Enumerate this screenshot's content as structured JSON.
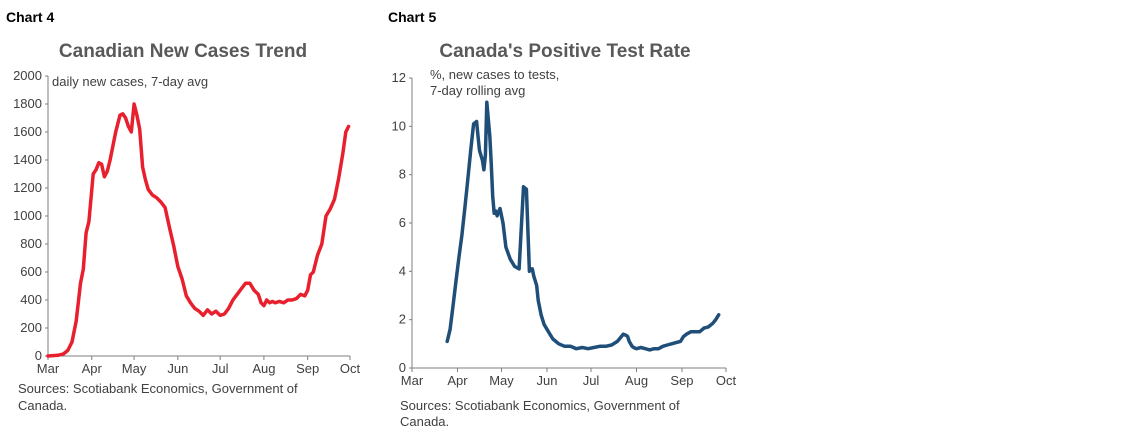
{
  "chart_data": [
    {
      "type": "line",
      "label": "Chart 4",
      "title": "Canadian New Cases Trend",
      "annotation": "daily new cases, 7-day avg",
      "xlabel": "",
      "ylabel": "",
      "ylim": [
        0,
        2000
      ],
      "yticks": [
        "0",
        "200",
        "400",
        "600",
        "800",
        "1000",
        "1200",
        "1400",
        "1600",
        "1800",
        "2000"
      ],
      "xlim": [
        1,
        215
      ],
      "xticks": [
        {
          "label": "Mar",
          "day": 1
        },
        {
          "label": "Apr",
          "day": 32
        },
        {
          "label": "May",
          "day": 62
        },
        {
          "label": "Jun",
          "day": 93
        },
        {
          "label": "Jul",
          "day": 123
        },
        {
          "label": "Aug",
          "day": 154
        },
        {
          "label": "Sep",
          "day": 185
        },
        {
          "label": "Oct",
          "day": 215
        }
      ],
      "color": "#e8202e",
      "series": [
        {
          "name": "daily new cases, 7-day avg",
          "x": [
            1,
            8,
            12,
            15,
            18,
            21,
            24,
            26,
            28,
            30,
            33,
            35,
            37,
            39,
            41,
            43,
            45,
            47,
            49,
            52,
            54,
            56,
            58,
            60,
            62,
            64,
            66,
            68,
            70,
            72,
            75,
            78,
            81,
            84,
            87,
            90,
            93,
            96,
            99,
            102,
            105,
            108,
            111,
            114,
            117,
            120,
            123,
            126,
            129,
            132,
            135,
            138,
            141,
            144,
            147,
            150,
            152,
            154,
            156,
            158,
            160,
            162,
            165,
            168,
            171,
            174,
            177,
            180,
            183,
            185,
            187,
            189,
            192,
            195,
            198,
            201,
            204,
            207,
            210,
            212,
            214
          ],
          "values": [
            0,
            5,
            15,
            40,
            100,
            250,
            520,
            620,
            880,
            960,
            1300,
            1330,
            1380,
            1370,
            1280,
            1320,
            1400,
            1500,
            1600,
            1720,
            1730,
            1700,
            1640,
            1600,
            1800,
            1720,
            1620,
            1350,
            1260,
            1190,
            1150,
            1130,
            1100,
            1060,
            920,
            790,
            640,
            550,
            430,
            380,
            340,
            320,
            290,
            330,
            300,
            320,
            290,
            300,
            340,
            400,
            440,
            480,
            520,
            520,
            470,
            440,
            380,
            360,
            400,
            380,
            390,
            380,
            390,
            380,
            400,
            400,
            410,
            440,
            430,
            470,
            580,
            600,
            720,
            800,
            1000,
            1050,
            1120,
            1270,
            1450,
            1600,
            1640
          ]
        }
      ]
    },
    {
      "type": "line",
      "label": "Chart 5",
      "title": "Canada's Positive Test Rate",
      "annotation": [
        "%, new cases to tests,",
        "7-day rolling avg"
      ],
      "xlabel": "",
      "ylabel": "",
      "ylim": [
        0,
        12
      ],
      "yticks": [
        "0",
        "2",
        "4",
        "6",
        "8",
        "10",
        "12"
      ],
      "xlim": [
        1,
        215
      ],
      "xticks": [
        {
          "label": "Mar",
          "day": 1
        },
        {
          "label": "Apr",
          "day": 32
        },
        {
          "label": "May",
          "day": 62
        },
        {
          "label": "Jun",
          "day": 93
        },
        {
          "label": "Jul",
          "day": 123
        },
        {
          "label": "Aug",
          "day": 154
        },
        {
          "label": "Sep",
          "day": 185
        },
        {
          "label": "Oct",
          "day": 215
        }
      ],
      "color": "#1f4e79",
      "series": [
        {
          "name": "%, new cases to tests, 7-day rolling avg",
          "x": [
            25,
            27,
            29,
            31,
            33,
            35,
            37,
            39,
            41,
            43,
            45,
            46,
            47,
            49,
            50,
            51,
            52,
            53,
            54,
            55,
            56,
            57,
            58,
            59,
            61,
            63,
            65,
            68,
            71,
            74,
            77,
            79,
            81,
            82,
            83,
            84,
            85,
            86,
            87,
            89,
            91,
            93,
            95,
            97,
            99,
            101,
            105,
            109,
            113,
            117,
            121,
            125,
            129,
            133,
            137,
            141,
            145,
            147,
            148,
            149,
            150,
            151,
            152,
            154,
            157,
            160,
            163,
            166,
            169,
            172,
            175,
            178,
            181,
            184,
            186,
            188,
            191,
            194,
            197,
            200,
            203,
            206,
            208,
            210
          ],
          "values": [
            1.1,
            1.6,
            2.6,
            3.6,
            4.6,
            5.5,
            6.6,
            7.8,
            9.0,
            10.1,
            10.2,
            9.6,
            9.0,
            8.6,
            8.2,
            8.8,
            11.0,
            10.3,
            9.6,
            8.5,
            7.1,
            6.4,
            6.5,
            6.3,
            6.6,
            6.0,
            5.0,
            4.5,
            4.2,
            4.1,
            7.5,
            7.4,
            4.0,
            4.1,
            4.1,
            3.8,
            3.6,
            3.4,
            2.8,
            2.2,
            1.8,
            1.6,
            1.4,
            1.2,
            1.1,
            1.0,
            0.9,
            0.9,
            0.8,
            0.85,
            0.8,
            0.85,
            0.9,
            0.9,
            0.95,
            1.1,
            1.4,
            1.35,
            1.3,
            1.1,
            1.0,
            0.9,
            0.85,
            0.8,
            0.85,
            0.8,
            0.75,
            0.8,
            0.8,
            0.9,
            0.95,
            1.0,
            1.05,
            1.1,
            1.3,
            1.4,
            1.5,
            1.5,
            1.5,
            1.65,
            1.7,
            1.85,
            2.0,
            2.2
          ]
        }
      ]
    }
  ],
  "sources": {
    "chart4": [
      "Sources: Scotiabank Economics,  Government of",
      "Canada."
    ],
    "chart5": [
      "Sources: Scotiabank Economics,  Government of",
      "Canada."
    ]
  }
}
